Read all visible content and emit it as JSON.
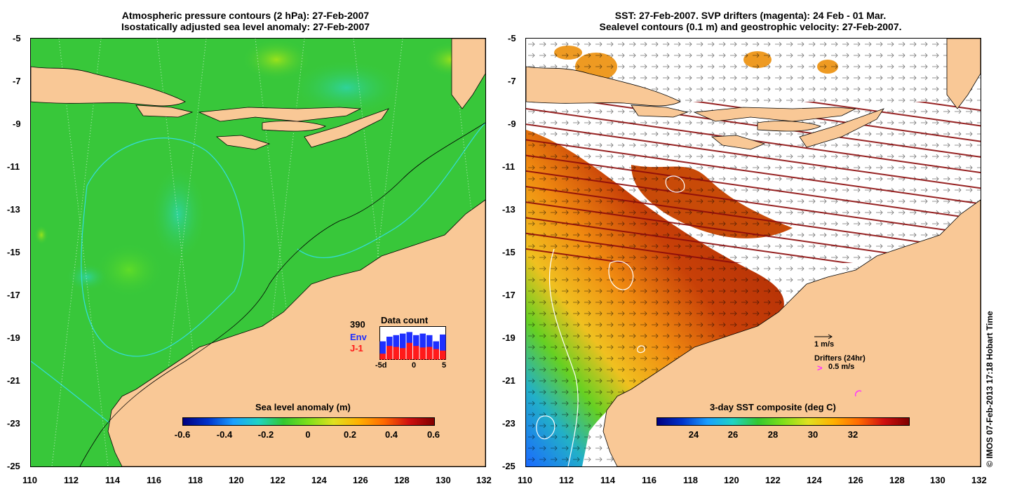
{
  "left_panel": {
    "title_line1": "Atmospheric pressure contours (2 hPa): 27-Feb-2007",
    "title_line2": "Isostatically adjusted sea level anomaly: 27-Feb-2007",
    "colorbar": {
      "title": "Sea level anomaly (m)",
      "ticks": [
        "-0.6",
        "-0.4",
        "-0.2",
        "0",
        "0.2",
        "0.4",
        "0.6"
      ]
    },
    "data_count": {
      "title": "Data count",
      "count": "390",
      "env_label": "Env",
      "j1_label": "J-1",
      "x_ticks": [
        "-5d",
        "0",
        "5"
      ],
      "env_values": [
        0.6,
        0.75,
        0.8,
        0.85,
        0.9,
        0.8,
        0.85,
        0.8,
        0.6,
        0.82
      ],
      "j1_values": [
        0.2,
        0.45,
        0.42,
        0.38,
        0.55,
        0.45,
        0.4,
        0.42,
        0.35,
        0.3
      ]
    }
  },
  "right_panel": {
    "title_line1": "SST: 27-Feb-2007. SVP drifters (magenta): 24 Feb - 01 Mar.",
    "title_line2": "Sealevel contours (0.1 m) and geostrophic velocity: 27-Feb-2007.",
    "colorbar": {
      "title": "3-day SST composite (deg C)",
      "ticks": [
        "24",
        "26",
        "28",
        "30",
        "32"
      ]
    },
    "scale_label": "1 m/s",
    "drifters_label": "Drifters (24hr)",
    "drifter_speed_label": "0.5 m/s",
    "drifter_symbol": ">"
  },
  "axes": {
    "y_ticks": [
      "-5",
      "-7",
      "-9",
      "-11",
      "-13",
      "-15",
      "-17",
      "-19",
      "-21",
      "-23",
      "-25"
    ],
    "x_ticks": [
      "110",
      "112",
      "114",
      "116",
      "118",
      "120",
      "122",
      "124",
      "126",
      "128",
      "130",
      "132"
    ]
  },
  "credit": "© IMOS 07-Feb-2013 17:18 Hobart Time",
  "colors": {
    "land": "#f9c896",
    "ocean_green": "#33cc33",
    "contour_cyan": "#33dddd",
    "env_blue": "#1f2fff",
    "j1_red": "#ff1a1a"
  }
}
